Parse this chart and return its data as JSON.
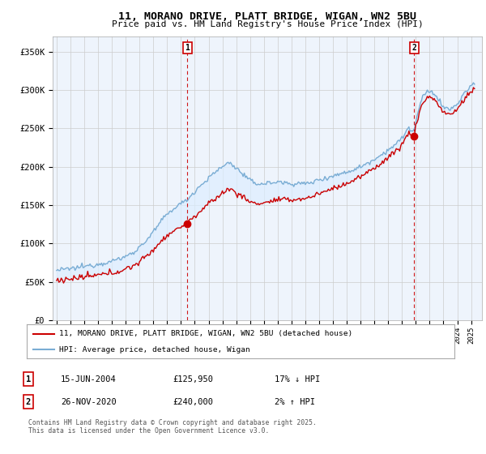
{
  "title_line1": "11, MORANO DRIVE, PLATT BRIDGE, WIGAN, WN2 5BU",
  "title_line2": "Price paid vs. HM Land Registry's House Price Index (HPI)",
  "ylabel_ticks": [
    "£0",
    "£50K",
    "£100K",
    "£150K",
    "£200K",
    "£250K",
    "£300K",
    "£350K"
  ],
  "ytick_vals": [
    0,
    50000,
    100000,
    150000,
    200000,
    250000,
    300000,
    350000
  ],
  "ylim": [
    0,
    370000
  ],
  "sale1_date": "15-JUN-2004",
  "sale1_price": 125950,
  "sale1_price_str": "£125,950",
  "sale1_pct": "17% ↓ HPI",
  "sale2_date": "26-NOV-2020",
  "sale2_price": 240000,
  "sale2_price_str": "£240,000",
  "sale2_pct": "2% ↑ HPI",
  "legend_line1": "11, MORANO DRIVE, PLATT BRIDGE, WIGAN, WN2 5BU (detached house)",
  "legend_line2": "HPI: Average price, detached house, Wigan",
  "footer": "Contains HM Land Registry data © Crown copyright and database right 2025.\nThis data is licensed under the Open Government Licence v3.0.",
  "line_color_red": "#cc0000",
  "line_color_blue": "#7aadd4",
  "fill_color_blue": "#ddeeff",
  "background_color": "#ffffff",
  "grid_color": "#cccccc",
  "sale_vline_color": "#cc0000",
  "xlim_left": 1994.7,
  "xlim_right": 2025.8
}
